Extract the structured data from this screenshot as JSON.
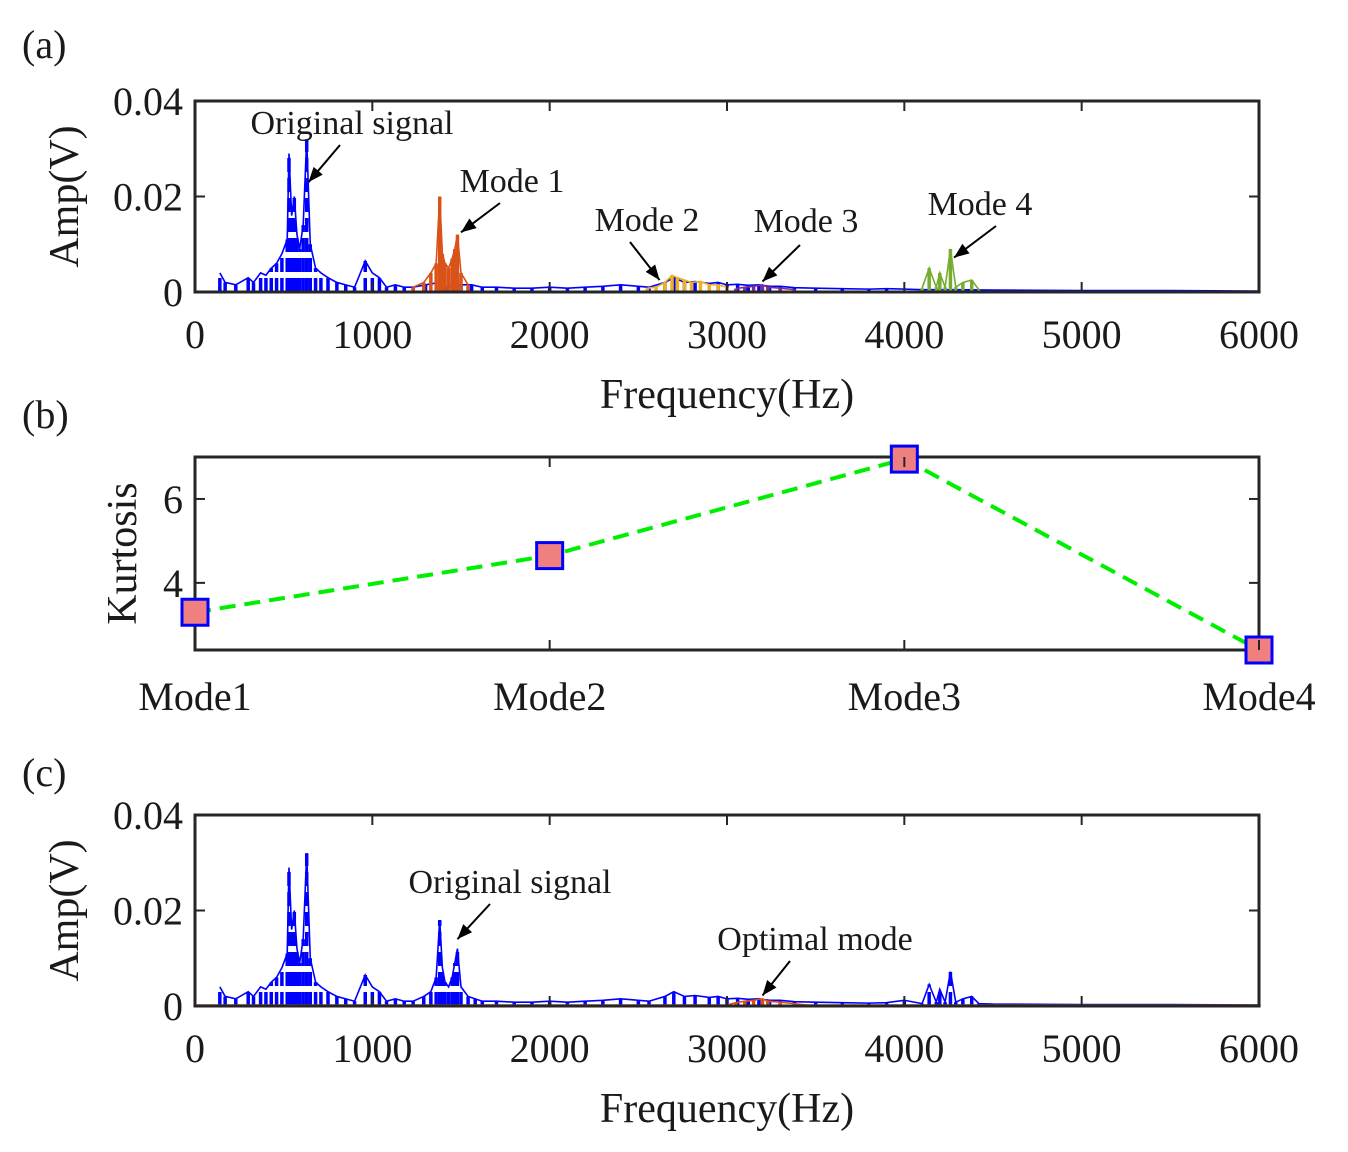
{
  "chart_data": [
    {
      "panel": "(a)",
      "type": "line",
      "xlabel": "Frequency(Hz)",
      "ylabel": "Amp(V)",
      "xlim": [
        0,
        6000
      ],
      "ylim": [
        0,
        0.04
      ],
      "xticks": [
        "0",
        "1000",
        "2000",
        "3000",
        "4000",
        "5000",
        "6000"
      ],
      "yticks": [
        "0",
        "0.02",
        "0.04"
      ],
      "grid": false,
      "colors": {
        "original": "#0000ff",
        "mode1": "#d95319",
        "mode2": "#edb120",
        "mode3": "#7e2f8e",
        "mode4": "#77ac30"
      },
      "series": [
        {
          "key": "original",
          "style": "dashed",
          "values": [
            [
              140,
              0.004
            ],
            [
              170,
              0.002
            ],
            [
              230,
              0.0015
            ],
            [
              300,
              0.003
            ],
            [
              330,
              0.002
            ],
            [
              370,
              0.004
            ],
            [
              400,
              0.0035
            ],
            [
              430,
              0.005
            ],
            [
              460,
              0.006
            ],
            [
              490,
              0.008
            ],
            [
              520,
              0.011
            ],
            [
              530,
              0.029
            ],
            [
              545,
              0.016
            ],
            [
              560,
              0.02
            ],
            [
              575,
              0.012
            ],
            [
              590,
              0.009
            ],
            [
              610,
              0.014
            ],
            [
              630,
              0.032
            ],
            [
              650,
              0.01
            ],
            [
              680,
              0.005
            ],
            [
              710,
              0.004
            ],
            [
              750,
              0.003
            ],
            [
              800,
              0.002
            ],
            [
              850,
              0.0015
            ],
            [
              900,
              0.001
            ],
            [
              960,
              0.0065
            ],
            [
              1000,
              0.004
            ],
            [
              1040,
              0.003
            ],
            [
              1080,
              0.001
            ],
            [
              1130,
              0.0015
            ],
            [
              1180,
              0.001
            ],
            [
              1230,
              0.001
            ],
            [
              1300,
              0.0015
            ],
            [
              1380,
              0.002
            ],
            [
              1420,
              0.001
            ],
            [
              1500,
              0.0015
            ],
            [
              1560,
              0.0015
            ],
            [
              1620,
              0.001
            ],
            [
              1700,
              0.001
            ],
            [
              1800,
              0.0008
            ],
            [
              1900,
              0.0008
            ],
            [
              2000,
              0.001
            ],
            [
              2100,
              0.0008
            ],
            [
              2200,
              0.001
            ],
            [
              2300,
              0.0012
            ],
            [
              2400,
              0.0015
            ],
            [
              2500,
              0.0012
            ],
            [
              2560,
              0.001
            ],
            [
              2650,
              0.002
            ],
            [
              2700,
              0.003
            ],
            [
              2760,
              0.002
            ],
            [
              2820,
              0.0022
            ],
            [
              2900,
              0.0018
            ],
            [
              2950,
              0.002
            ],
            [
              3000,
              0.0015
            ],
            [
              3060,
              0.0016
            ],
            [
              3120,
              0.0014
            ],
            [
              3180,
              0.0015
            ],
            [
              3240,
              0.0012
            ],
            [
              3300,
              0.0012
            ],
            [
              3380,
              0.0009
            ],
            [
              3500,
              0.0008
            ],
            [
              3650,
              0.0007
            ],
            [
              3800,
              0.0006
            ],
            [
              3900,
              0.0007
            ],
            [
              4100,
              0.0005
            ],
            [
              4300,
              0.0005
            ],
            [
              4500,
              0.0004
            ],
            [
              5000,
              0.0003
            ],
            [
              5500,
              0.0003
            ],
            [
              6000,
              0.0002
            ]
          ]
        },
        {
          "key": "mode1",
          "style": "solid",
          "values": [
            [
              1230,
              0.001
            ],
            [
              1290,
              0.002
            ],
            [
              1330,
              0.004
            ],
            [
              1360,
              0.006
            ],
            [
              1380,
              0.02
            ],
            [
              1395,
              0.008
            ],
            [
              1410,
              0.006
            ],
            [
              1430,
              0.005
            ],
            [
              1450,
              0.007
            ],
            [
              1465,
              0.009
            ],
            [
              1480,
              0.012
            ],
            [
              1500,
              0.004
            ],
            [
              1540,
              0.0015
            ]
          ]
        },
        {
          "key": "mode2",
          "style": "solid",
          "values": [
            [
              2550,
              0.0008
            ],
            [
              2600,
              0.001
            ],
            [
              2650,
              0.002
            ],
            [
              2690,
              0.0035
            ],
            [
              2720,
              0.003
            ],
            [
              2760,
              0.0025
            ],
            [
              2800,
              0.002
            ],
            [
              2850,
              0.0022
            ],
            [
              2900,
              0.0015
            ],
            [
              2950,
              0.0015
            ],
            [
              3000,
              0.001
            ]
          ]
        },
        {
          "key": "mode3",
          "style": "solid",
          "values": [
            [
              3050,
              0.0007
            ],
            [
              3100,
              0.001
            ],
            [
              3150,
              0.0012
            ],
            [
              3200,
              0.0015
            ],
            [
              3230,
              0.001
            ],
            [
              3300,
              0.0008
            ],
            [
              3380,
              0.0005
            ]
          ]
        },
        {
          "key": "mode4",
          "style": "solid",
          "values": [
            [
              4100,
              0.0008
            ],
            [
              4140,
              0.005
            ],
            [
              4180,
              0.001
            ],
            [
              4200,
              0.004
            ],
            [
              4230,
              0.001
            ],
            [
              4260,
              0.009
            ],
            [
              4290,
              0.001
            ],
            [
              4330,
              0.002
            ],
            [
              4380,
              0.0025
            ],
            [
              4420,
              0.0005
            ]
          ]
        }
      ],
      "annotations": [
        {
          "text": "Original signal",
          "at": [
            640,
            0.023
          ]
        },
        {
          "text": "Mode 1",
          "at": [
            1500,
            0.0125
          ]
        },
        {
          "text": "Mode 2",
          "at": [
            2620,
            0.0025
          ]
        },
        {
          "text": "Mode 3",
          "at": [
            3200,
            0.0022
          ]
        },
        {
          "text": "Mode 4",
          "at": [
            4280,
            0.0072
          ]
        }
      ]
    },
    {
      "panel": "(b)",
      "type": "line",
      "ylabel": "Kurtosis",
      "categories": [
        "Mode1",
        "Mode2",
        "Mode3",
        "Mode4"
      ],
      "values": [
        3.3,
        4.65,
        6.95,
        2.4
      ],
      "ylim": [
        2.4,
        7
      ],
      "yticks": [
        "4",
        "6"
      ],
      "grid": false,
      "line_color": "#00ee00",
      "line_style": "dashed",
      "marker": "square",
      "marker_fill": "#f08080",
      "marker_edge": "#0000ff"
    },
    {
      "panel": "(c)",
      "type": "line",
      "xlabel": "Frequency(Hz)",
      "ylabel": "Amp(V)",
      "xlim": [
        0,
        6000
      ],
      "ylim": [
        0,
        0.04
      ],
      "xticks": [
        "0",
        "1000",
        "2000",
        "3000",
        "4000",
        "5000",
        "6000"
      ],
      "yticks": [
        "0",
        "0.02",
        "0.04"
      ],
      "grid": false,
      "colors": {
        "original": "#0000ff",
        "optimal": "#d95319"
      },
      "series": [
        {
          "key": "original",
          "style": "dashed",
          "values": [
            [
              140,
              0.004
            ],
            [
              170,
              0.002
            ],
            [
              230,
              0.0015
            ],
            [
              300,
              0.003
            ],
            [
              330,
              0.002
            ],
            [
              370,
              0.004
            ],
            [
              400,
              0.0035
            ],
            [
              430,
              0.005
            ],
            [
              460,
              0.006
            ],
            [
              490,
              0.008
            ],
            [
              520,
              0.011
            ],
            [
              530,
              0.029
            ],
            [
              545,
              0.016
            ],
            [
              560,
              0.02
            ],
            [
              575,
              0.012
            ],
            [
              590,
              0.009
            ],
            [
              610,
              0.014
            ],
            [
              630,
              0.032
            ],
            [
              650,
              0.01
            ],
            [
              680,
              0.005
            ],
            [
              710,
              0.004
            ],
            [
              750,
              0.003
            ],
            [
              800,
              0.002
            ],
            [
              850,
              0.0015
            ],
            [
              900,
              0.001
            ],
            [
              960,
              0.0065
            ],
            [
              1000,
              0.004
            ],
            [
              1040,
              0.003
            ],
            [
              1080,
              0.001
            ],
            [
              1130,
              0.0015
            ],
            [
              1180,
              0.001
            ],
            [
              1230,
              0.001
            ],
            [
              1290,
              0.002
            ],
            [
              1330,
              0.003
            ],
            [
              1360,
              0.006
            ],
            [
              1380,
              0.018
            ],
            [
              1395,
              0.008
            ],
            [
              1410,
              0.005
            ],
            [
              1430,
              0.004
            ],
            [
              1450,
              0.006
            ],
            [
              1465,
              0.009
            ],
            [
              1480,
              0.012
            ],
            [
              1500,
              0.004
            ],
            [
              1540,
              0.002
            ],
            [
              1580,
              0.0015
            ],
            [
              1620,
              0.001
            ],
            [
              1700,
              0.001
            ],
            [
              1800,
              0.0008
            ],
            [
              1900,
              0.0008
            ],
            [
              2000,
              0.001
            ],
            [
              2100,
              0.0008
            ],
            [
              2200,
              0.001
            ],
            [
              2300,
              0.0012
            ],
            [
              2400,
              0.0015
            ],
            [
              2500,
              0.0012
            ],
            [
              2560,
              0.001
            ],
            [
              2650,
              0.002
            ],
            [
              2700,
              0.003
            ],
            [
              2760,
              0.002
            ],
            [
              2820,
              0.0022
            ],
            [
              2900,
              0.0018
            ],
            [
              2950,
              0.002
            ],
            [
              3000,
              0.0015
            ],
            [
              3060,
              0.0016
            ],
            [
              3120,
              0.0014
            ],
            [
              3180,
              0.0015
            ],
            [
              3240,
              0.0012
            ],
            [
              3300,
              0.0012
            ],
            [
              3380,
              0.0009
            ],
            [
              3500,
              0.0008
            ],
            [
              3650,
              0.0007
            ],
            [
              3800,
              0.0006
            ],
            [
              3900,
              0.0007
            ],
            [
              4000,
              0.0012
            ],
            [
              4100,
              0.0005
            ],
            [
              4140,
              0.0045
            ],
            [
              4180,
              0.0008
            ],
            [
              4200,
              0.0035
            ],
            [
              4230,
              0.0008
            ],
            [
              4260,
              0.0072
            ],
            [
              4290,
              0.0008
            ],
            [
              4330,
              0.0015
            ],
            [
              4380,
              0.002
            ],
            [
              4420,
              0.0005
            ],
            [
              4500,
              0.0004
            ],
            [
              5000,
              0.0003
            ],
            [
              5500,
              0.0003
            ],
            [
              6000,
              0.0002
            ]
          ]
        },
        {
          "key": "optimal",
          "style": "solid",
          "values": [
            [
              0,
              0.0002
            ],
            [
              3000,
              0.0002
            ],
            [
              3050,
              0.0007
            ],
            [
              3100,
              0.001
            ],
            [
              3150,
              0.0012
            ],
            [
              3200,
              0.0015
            ],
            [
              3230,
              0.001
            ],
            [
              3300,
              0.0008
            ],
            [
              3380,
              0.0005
            ],
            [
              3450,
              0.0002
            ],
            [
              6000,
              0.0002
            ]
          ]
        }
      ],
      "annotations": [
        {
          "text": "Original signal",
          "at": [
            1480,
            0.014
          ]
        },
        {
          "text": "Optimal mode",
          "at": [
            3200,
            0.0022
          ]
        }
      ]
    }
  ]
}
